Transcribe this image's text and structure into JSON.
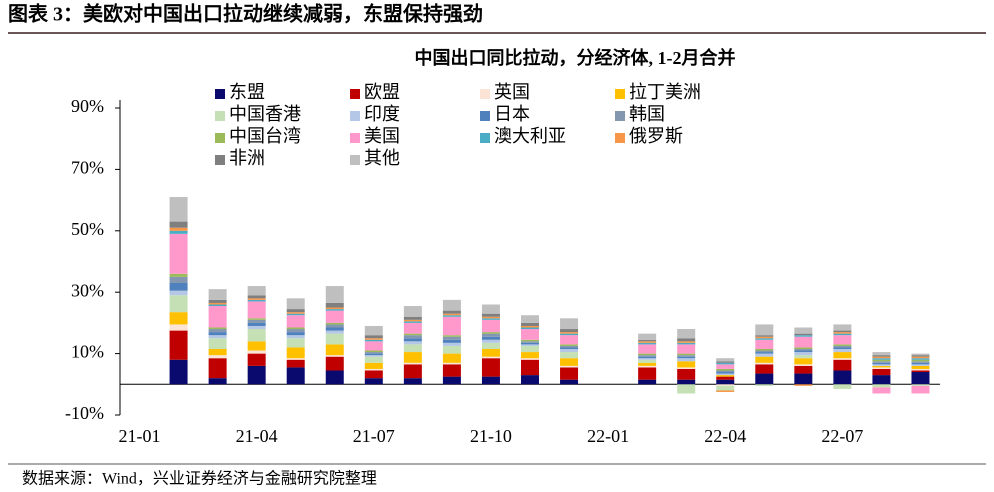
{
  "chart_data": {
    "type": "bar",
    "stacked": true,
    "figure_title": "图表 3：美欧对中国出口拉动继续减弱，东盟保持强劲",
    "title": "中国出口同比拉动，分经济体, 1-2月合并",
    "source": "数据来源：Wind，兴业证券经济与金融研究院整理",
    "categories": [
      "21-01",
      null,
      null,
      "21-04",
      null,
      null,
      "21-07",
      null,
      null,
      "21-10",
      null,
      null,
      "22-01",
      null,
      null,
      "22-04",
      null,
      null,
      "22-07",
      null,
      null
    ],
    "series": [
      {
        "name": "东盟",
        "color": "#0a0a6e",
        "values": [
          null,
          8,
          2,
          6,
          5.5,
          4.5,
          2,
          2,
          2.5,
          2.5,
          3,
          1.5,
          null,
          1.5,
          1.5,
          1.5,
          3.5,
          3.5,
          4.5,
          3,
          4
        ]
      },
      {
        "name": "欧盟",
        "color": "#c00000",
        "values": [
          null,
          9.5,
          6.5,
          4,
          2.5,
          4.5,
          2.5,
          4.5,
          4,
          6,
          5,
          4,
          null,
          4,
          3.5,
          1,
          3,
          2.5,
          3.5,
          2,
          0.5
        ]
      },
      {
        "name": "英国",
        "color": "#fbe4d5",
        "values": [
          null,
          2,
          1,
          1,
          0.5,
          0.5,
          0.5,
          0.5,
          0.5,
          0.5,
          0.5,
          0.5,
          null,
          0.5,
          0.5,
          -0.5,
          0.5,
          0.5,
          0.5,
          0.5,
          0.5
        ]
      },
      {
        "name": "拉丁美洲",
        "color": "#ffc000",
        "values": [
          null,
          4,
          2,
          3,
          3.5,
          3.5,
          2,
          3.5,
          3,
          2.5,
          2,
          2.5,
          null,
          1,
          2,
          0.5,
          2,
          2,
          2,
          0.5,
          1
        ]
      },
      {
        "name": "中国香港",
        "color": "#c5e0b4",
        "values": [
          null,
          5.5,
          3.5,
          4,
          3,
          3.5,
          2,
          2.5,
          2.5,
          2,
          2,
          2,
          null,
          1,
          -3,
          -1.5,
          -0.5,
          1,
          -1.5,
          -1,
          -0.5
        ]
      },
      {
        "name": "印度",
        "color": "#b4c7e7",
        "values": [
          null,
          1.5,
          1,
          1,
          1,
          1,
          0.5,
          1,
          1,
          1,
          0.5,
          1,
          null,
          0.5,
          1,
          0.5,
          1,
          1,
          1,
          0.5,
          0.5
        ]
      },
      {
        "name": "日本",
        "color": "#4f81bd",
        "values": [
          null,
          2.5,
          1,
          1,
          1,
          1,
          0.5,
          1,
          1,
          1,
          0.5,
          0.5,
          null,
          0.5,
          0.5,
          0.5,
          0.5,
          0.5,
          0.5,
          0.5,
          0.5
        ]
      },
      {
        "name": "韩国",
        "color": "#8497b0",
        "values": [
          null,
          2,
          1,
          1,
          1,
          1,
          0.5,
          1,
          1,
          1,
          0.5,
          0.5,
          null,
          0.5,
          0.5,
          0.5,
          0.5,
          0.5,
          0.5,
          0.5,
          0.5
        ]
      },
      {
        "name": "中国台湾",
        "color": "#9bbb59",
        "values": [
          null,
          1,
          0.5,
          0.5,
          0.5,
          0.5,
          0.5,
          0.5,
          0.5,
          0.5,
          0.5,
          0.5,
          null,
          0.5,
          0.5,
          0.5,
          0.5,
          0.5,
          0.5,
          0.5,
          0.5
        ]
      },
      {
        "name": "美国",
        "color": "#ff99cc",
        "values": [
          null,
          13,
          7,
          5.5,
          4,
          4,
          3,
          3.5,
          6,
          4,
          3.5,
          3,
          null,
          3,
          3,
          1.5,
          3,
          3.5,
          3,
          -2,
          -2.5
        ]
      },
      {
        "name": "澳大利亚",
        "color": "#4bacc6",
        "values": [
          null,
          1,
          0.5,
          0.5,
          0.5,
          0.5,
          0.5,
          0.5,
          0.5,
          0.5,
          0.5,
          0.5,
          null,
          0.5,
          0.5,
          0.5,
          0.5,
          0.5,
          0.5,
          0.5,
          0.5
        ]
      },
      {
        "name": "俄罗斯",
        "color": "#f79646",
        "values": [
          null,
          1,
          0.5,
          0.5,
          0.5,
          0.5,
          0.5,
          0.5,
          0.5,
          0.5,
          0.5,
          0.5,
          null,
          0.5,
          0.5,
          -0.5,
          0.5,
          -0.5,
          0.5,
          0.5,
          0.5
        ]
      },
      {
        "name": "非洲",
        "color": "#7f7f7f",
        "values": [
          null,
          2,
          1,
          1,
          1,
          1.5,
          1,
          1,
          1,
          1,
          1,
          1,
          null,
          0.5,
          1,
          0.5,
          0.5,
          0.5,
          0.5,
          0.5,
          0.5
        ]
      },
      {
        "name": "其他",
        "color": "#bfbfbf",
        "values": [
          null,
          8,
          3.5,
          3,
          3.5,
          5.5,
          3,
          3.5,
          3.5,
          3,
          2.5,
          3.5,
          null,
          2,
          3,
          1,
          3.5,
          2,
          2,
          1,
          0.5
        ]
      }
    ],
    "ylim": [
      -10,
      90
    ],
    "yticks": [
      {
        "value": -10,
        "label": "-10%"
      },
      {
        "value": 10,
        "label": "10%"
      },
      {
        "value": 30,
        "label": "30%"
      },
      {
        "value": 50,
        "label": "50%"
      },
      {
        "value": 70,
        "label": "70%"
      },
      {
        "value": 90,
        "label": "90%"
      }
    ]
  }
}
